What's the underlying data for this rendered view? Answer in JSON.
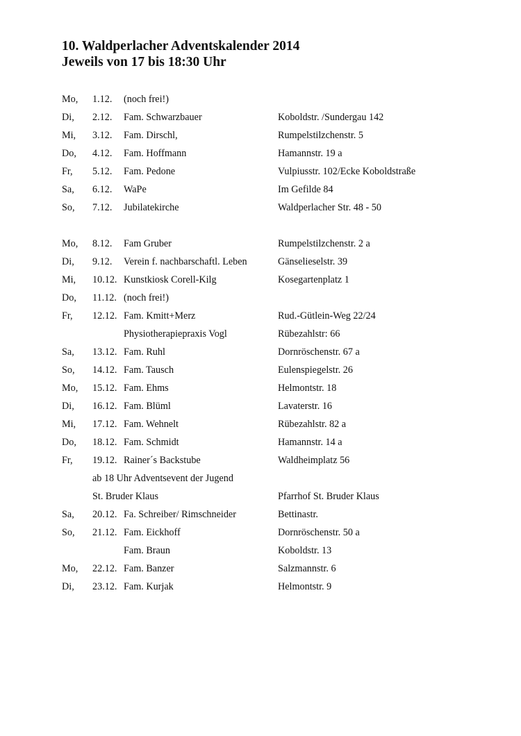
{
  "title": "10. Waldperlacher Adventskalender 2014",
  "subtitle": "Jeweils von 17 bis 18:30 Uhr",
  "entries": [
    {
      "day": "Mo,",
      "date": "1.12.",
      "name": "(noch frei!)",
      "address": ""
    },
    {
      "day": "Di,",
      "date": "2.12.",
      "name": "Fam. Schwarzbauer",
      "address": "Koboldstr. /Sundergau 142"
    },
    {
      "day": "Mi,",
      "date": "3.12.",
      "name": "Fam. Dirschl,",
      "address": "Rumpelstilzchenstr. 5"
    },
    {
      "day": "Do,",
      "date": "4.12.",
      "name": "Fam. Hoffmann",
      "address": "Hamannstr. 19 a"
    },
    {
      "day": "Fr,",
      "date": "5.12.",
      "name": "Fam. Pedone",
      "address": "Vulpiusstr. 102/Ecke Koboldstraße"
    },
    {
      "day": "Sa,",
      "date": "6.12.",
      "name": "WaPe",
      "address": "Im Gefilde 84"
    },
    {
      "day": "So,",
      "date": "7.12.",
      "name": "Jubilatekirche",
      "address": "Waldperlacher Str. 48 - 50"
    },
    {
      "day": "",
      "date": "",
      "name": "",
      "address": ""
    },
    {
      "day": "Mo,",
      "date": "8.12.",
      "name": "Fam Gruber",
      "address": "Rumpelstilzchenstr. 2 a"
    },
    {
      "day": "Di,",
      "date": "9.12.",
      "name": "Verein f. nachbarschaftl. Leben",
      "address": "Gänselieselstr. 39"
    },
    {
      "day": "Mi,",
      "date": "10.12.",
      "name": "Kunstkiosk Corell-Kilg",
      "address": "Kosegartenplatz 1"
    },
    {
      "day": "Do,",
      "date": "11.12.",
      "name": "(noch frei!)",
      "address": ""
    },
    {
      "day": "Fr,",
      "date": "12.12.",
      "name": "Fam. Kmitt+Merz",
      "address": "Rud.-Gütlein-Weg 22/24"
    },
    {
      "day": "",
      "date": "",
      "name": "Physiotherapiepraxis Vogl",
      "address": "Rübezahlstr: 66"
    },
    {
      "day": "Sa,",
      "date": "13.12.",
      "name": "Fam. Ruhl",
      "address": "Dornröschenstr. 67 a"
    },
    {
      "day": "So,",
      "date": "14.12.",
      "name": "Fam. Tausch",
      "address": "Eulenspiegelstr. 26"
    },
    {
      "day": "Mo,",
      "date": "15.12.",
      "name": "Fam. Ehms",
      "address": "Helmontstr. 18"
    },
    {
      "day": "Di,",
      "date": "16.12.",
      "name": "Fam. Blüml",
      "address": "Lavaterstr. 16"
    },
    {
      "day": "Mi,",
      "date": "17.12.",
      "name": "Fam. Wehnelt",
      "address": "Rübezahlstr. 82 a"
    },
    {
      "day": "Do,",
      "date": "18.12.",
      "name": "Fam. Schmidt",
      "address": "Hamannstr. 14 a"
    },
    {
      "day": "Fr,",
      "date": "19.12.",
      "name": "Rainer´s Backstube",
      "address": "Waldheimplatz 56"
    },
    {
      "day": "",
      "date": "",
      "name": "ab 18 Uhr Adventsevent der Jugend",
      "address": "",
      "span": true
    },
    {
      "day": "",
      "date": "",
      "name": "St. Bruder Klaus",
      "address": "Pfarrhof St. Bruder Klaus",
      "span": true
    },
    {
      "day": "Sa,",
      "date": "20.12.",
      "name": "Fa. Schreiber/ Rimschneider",
      "address": "Bettinastr."
    },
    {
      "day": "So,",
      "date": "21.12.",
      "name": "Fam. Eickhoff",
      "address": "Dornröschenstr. 50 a"
    },
    {
      "day": "",
      "date": "",
      "name": "Fam. Braun",
      "address": "Koboldstr. 13"
    },
    {
      "day": "Mo,",
      "date": "22.12.",
      "name": "Fam. Banzer",
      "address": "Salzmannstr. 6"
    },
    {
      "day": "Di,",
      "date": "23.12.",
      "name": "Fam. Kurjak",
      "address": "Helmontstr. 9"
    }
  ]
}
